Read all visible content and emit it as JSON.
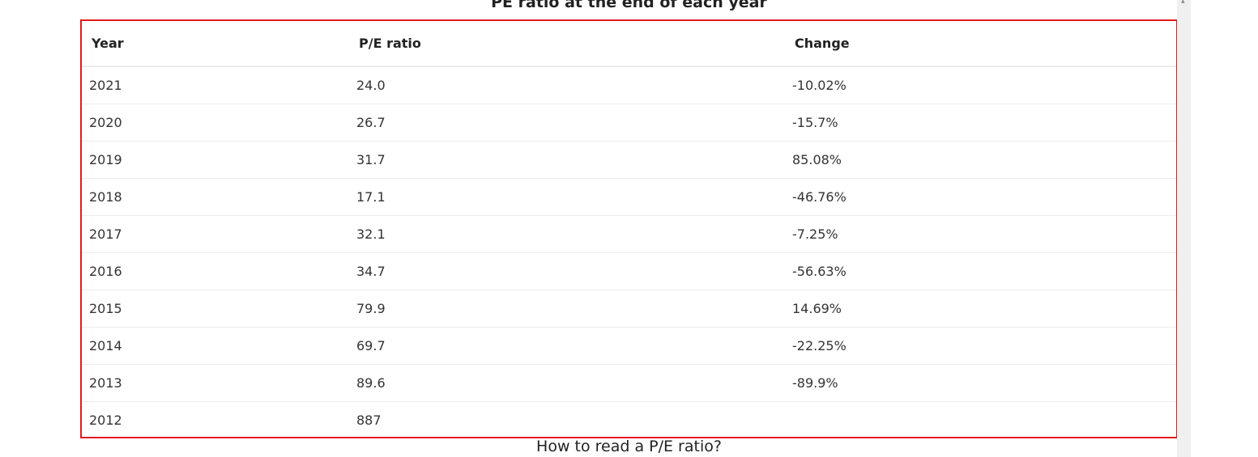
{
  "header": {
    "title": "PE ratio at the end of each year"
  },
  "table": {
    "columns": [
      "Year",
      "P/E ratio",
      "Change"
    ],
    "rows": [
      {
        "year": "2021",
        "pe": "24.0",
        "change": "-10.02%",
        "direction": "negative"
      },
      {
        "year": "2020",
        "pe": "26.7",
        "change": "-15.7%",
        "direction": "negative"
      },
      {
        "year": "2019",
        "pe": "31.7",
        "change": "85.08%",
        "direction": "positive"
      },
      {
        "year": "2018",
        "pe": "17.1",
        "change": "-46.76%",
        "direction": "negative"
      },
      {
        "year": "2017",
        "pe": "32.1",
        "change": "-7.25%",
        "direction": "negative"
      },
      {
        "year": "2016",
        "pe": "34.7",
        "change": "-56.63%",
        "direction": "negative"
      },
      {
        "year": "2015",
        "pe": "79.9",
        "change": "14.69%",
        "direction": "positive"
      },
      {
        "year": "2014",
        "pe": "69.7",
        "change": "-22.25%",
        "direction": "negative"
      },
      {
        "year": "2013",
        "pe": "89.6",
        "change": "-89.9%",
        "direction": "negative"
      },
      {
        "year": "2012",
        "pe": "887",
        "change": "",
        "direction": "none"
      }
    ]
  },
  "next_section": {
    "title": "How to read a P/E ratio?"
  },
  "colors": {
    "negative": "#e2434b",
    "positive": "#2aa15a",
    "highlight_border": "#e31b1b"
  }
}
